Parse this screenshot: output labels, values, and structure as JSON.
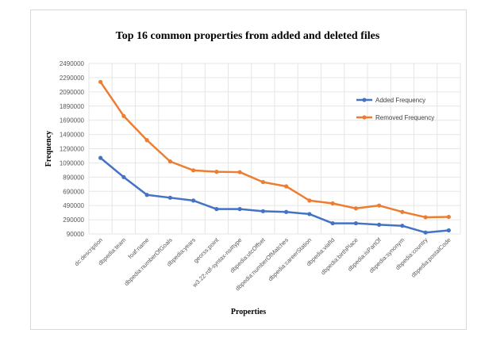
{
  "chart_data": {
    "type": "line",
    "title": "Top 16 common properties from added and deleted files",
    "xlabel": "Properties",
    "ylabel": "Frequency",
    "categories": [
      "dc:description",
      "dbpedia:team",
      "foaf:name",
      "dbpedia:numberOfGoals",
      "dbpedia:years",
      "georss:point",
      "w3.22-rdf-syntax-ns#type",
      "dbpedia:utcOffset",
      "dbpedia:numberOfMatches",
      "dbpedia:careerStation",
      "dbpedia:viafId",
      "dbpedia:birthPlace",
      "dbpedia:isPartOf",
      "dbpedia:synonym",
      "dbpedia:country",
      "dbpedia:postalCode"
    ],
    "y_ticks": [
      90000,
      290000,
      490000,
      690000,
      890000,
      1090000,
      1290000,
      1490000,
      1690000,
      1890000,
      2090000,
      2290000,
      2490000
    ],
    "ylim": [
      90000,
      2490000
    ],
    "grid": true,
    "legend_position": "right",
    "series": [
      {
        "name": "Added Frequency",
        "color": "#4472c4",
        "values": [
          1160000,
          890000,
          640000,
          600000,
          560000,
          440000,
          440000,
          410000,
          400000,
          370000,
          240000,
          240000,
          220000,
          205000,
          110000,
          140000
        ]
      },
      {
        "name": "Removed Frequency",
        "color": "#ed7d31",
        "values": [
          2230000,
          1750000,
          1410000,
          1110000,
          985000,
          965000,
          960000,
          820000,
          760000,
          560000,
          520000,
          450000,
          490000,
          400000,
          325000,
          330000
        ]
      }
    ]
  }
}
